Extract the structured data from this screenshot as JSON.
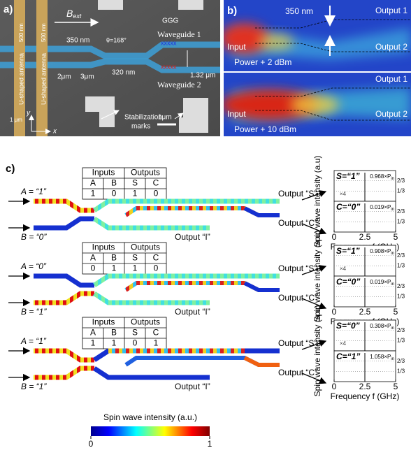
{
  "panel_a": {
    "label": "a)",
    "b_field": "B",
    "b_field_sub": "ext",
    "substrate": "GGG",
    "waveguide_1": "Waveguide 1",
    "waveguide_2": "Waveguide 2",
    "gap_left": "350 nm",
    "angle": "θ=168°",
    "gap_middle": "320 nm",
    "offset": "1.32 μm",
    "length_1": "2μm",
    "length_2": "3μm",
    "marks_line_1": "Stabilization",
    "marks_line_2": "marks",
    "antenna_1": "U-shaped antenna",
    "antenna_2": "U-shaped antenna",
    "antenna_width_1": "500 nm",
    "antenna_width_2": "500 nm",
    "spacing": "1 μm",
    "axis_y": "y",
    "axis_x": "x",
    "scale_bar": "1μm"
  },
  "panel_b": {
    "label": "b)",
    "gap": "350 nm",
    "maps": [
      {
        "input": "Input",
        "output_1": "Output 1",
        "output_2": "Output 2",
        "power": "Power + 2 dBm"
      },
      {
        "input": "Input",
        "output_1": "Output 1",
        "output_2": "Output 2",
        "power": "Power + 10 dBm"
      }
    ]
  },
  "panel_c": {
    "label": "c)",
    "table_header": [
      "Inputs",
      "Outputs"
    ],
    "table_columns": [
      "A",
      "B",
      "S",
      "C"
    ],
    "output_s": "Output “S”",
    "output_c": "Output “C”",
    "output_i": "Output “I”",
    "spectrum": {
      "ylabel": "Spin wave intensity (a.u)",
      "xlabel": "Frequency f (GHz)",
      "xlim": [
        0,
        5
      ],
      "xticks": [
        0,
        2.5,
        5
      ],
      "yticks": [
        "2/3",
        "1/3"
      ],
      "zoom": "×4",
      "p_sub": "in"
    },
    "rows": [
      {
        "table": [
          1,
          0,
          1,
          0
        ],
        "input_a": "A = “1”",
        "input_b": "B = “0”",
        "spectrum": {
          "top_label": "S=“1”",
          "top_value": "0.968×P",
          "bottom_label": "C=“0”",
          "bottom_value": "0.019×P"
        }
      },
      {
        "table": [
          0,
          1,
          1,
          0
        ],
        "input_a": "A = “0”",
        "input_b": "B = “1”",
        "spectrum": {
          "top_label": "S=“1”",
          "top_value": "0.908×P",
          "bottom_label": "C=“0”",
          "bottom_value": "0.019×P"
        }
      },
      {
        "table": [
          1,
          1,
          0,
          1
        ],
        "input_a": "A = “1”",
        "input_b": "B = “1”",
        "spectrum": {
          "top_label": "S=“0”",
          "top_value": "0.308×P",
          "bottom_label": "C=“1”",
          "bottom_value": "1.058×P"
        }
      }
    ],
    "colorbar": {
      "title": "Spin wave intensity (a.u.)",
      "min": 0,
      "max": 1
    }
  }
}
